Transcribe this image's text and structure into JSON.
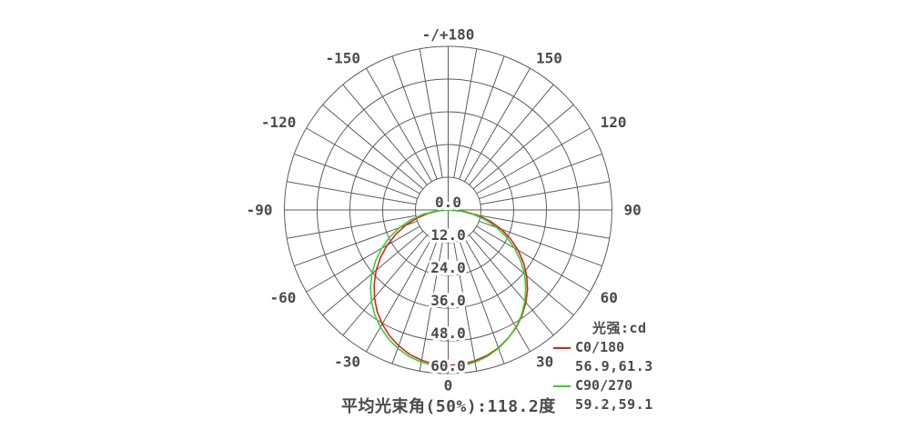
{
  "legend": {
    "title": "光强:cd",
    "items": [
      {
        "label": "C0/180",
        "values": "56.9,61.3",
        "color": "#e01f1f"
      },
      {
        "label": "C90/270",
        "values": "59.2,59.1",
        "color": "#2ed32e"
      }
    ]
  },
  "footer": {
    "beam_angle_text": "平均光束角(50%):118.2度"
  },
  "chart_data": {
    "type": "line",
    "coordinate_system": "polar",
    "unit": "cd",
    "grid": true,
    "grid_color": "#5c5c5c",
    "angle_zero_position": "bottom",
    "angle_tick_interval_deg": 10,
    "radial_max": 60,
    "radial_ticks": [
      {
        "value": 0,
        "label": "0.0"
      },
      {
        "value": 12,
        "label": "12.0"
      },
      {
        "value": 24,
        "label": "24.0"
      },
      {
        "value": 36,
        "label": "36.0"
      },
      {
        "value": 48,
        "label": "48.0"
      },
      {
        "value": 60,
        "label": "60.0"
      }
    ],
    "angle_labels": [
      {
        "angle": 0,
        "label": "0"
      },
      {
        "angle": 30,
        "label": "30"
      },
      {
        "angle": 60,
        "label": "60"
      },
      {
        "angle": 90,
        "label": "90"
      },
      {
        "angle": 120,
        "label": "120"
      },
      {
        "angle": 150,
        "label": "150"
      },
      {
        "angle": 180,
        "label": "-/+180"
      },
      {
        "angle": -30,
        "label": "-30"
      },
      {
        "angle": -60,
        "label": "-60"
      },
      {
        "angle": -90,
        "label": "-90"
      },
      {
        "angle": -120,
        "label": "-120"
      },
      {
        "angle": -150,
        "label": "-150"
      }
    ],
    "legend_title": "光强:cd",
    "avg_beam_angle_50pct_deg": 118.2,
    "series": [
      {
        "name": "C0/180",
        "color": "#e01f1f",
        "beam_half_angles_deg": [
          56.9,
          61.3
        ],
        "angles_deg": [
          -90,
          -85,
          -80,
          -75,
          -70,
          -65,
          -60,
          -55,
          -50,
          -45,
          -40,
          -35,
          -30,
          -25,
          -20,
          -15,
          -10,
          -5,
          0,
          5,
          10,
          15,
          20,
          25,
          30,
          35,
          40,
          45,
          50,
          55,
          60,
          65,
          70,
          75,
          80,
          85,
          90
        ],
        "values_cd": [
          0,
          3.5,
          7.7,
          12.1,
          16.7,
          21.2,
          25.8,
          30.2,
          34.4,
          38.3,
          42.0,
          45.4,
          48.3,
          50.9,
          53.0,
          54.8,
          56.0,
          56.8,
          57.0,
          56.8,
          56.2,
          55.2,
          53.8,
          51.9,
          49.8,
          47.2,
          44.3,
          41.1,
          37.5,
          33.7,
          29.6,
          25.3,
          20.7,
          15.9,
          10.9,
          5.7,
          0
        ]
      },
      {
        "name": "C90/270",
        "color": "#2ed32e",
        "beam_half_angles_deg": [
          59.2,
          59.1
        ],
        "angles_deg": [
          -90,
          -85,
          -80,
          -75,
          -70,
          -65,
          -60,
          -55,
          -50,
          -45,
          -40,
          -35,
          -30,
          -25,
          -20,
          -15,
          -10,
          -5,
          0,
          5,
          10,
          15,
          20,
          25,
          30,
          35,
          40,
          45,
          50,
          55,
          60,
          65,
          70,
          75,
          80,
          85,
          90
        ],
        "values_cd": [
          0,
          4.6,
          9.4,
          14.2,
          19.0,
          23.6,
          28.1,
          32.4,
          36.5,
          40.2,
          43.7,
          46.9,
          49.6,
          52.0,
          54.0,
          55.6,
          56.7,
          57.4,
          57.6,
          57.4,
          56.7,
          55.6,
          54.0,
          52.0,
          49.6,
          46.9,
          43.7,
          40.2,
          36.5,
          32.4,
          28.1,
          23.6,
          19.0,
          14.2,
          9.4,
          4.6,
          0
        ]
      }
    ]
  }
}
